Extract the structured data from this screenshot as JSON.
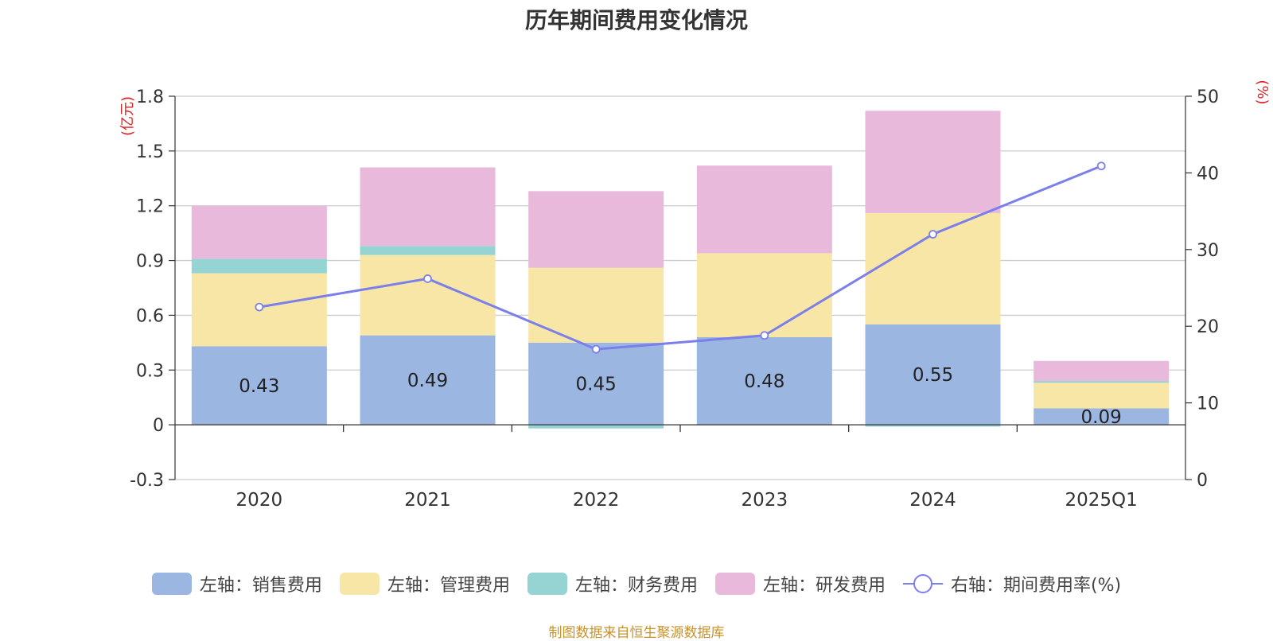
{
  "chart_data": {
    "type": "bar",
    "title": "历年期间费用变化情况",
    "categories": [
      "2020",
      "2021",
      "2022",
      "2023",
      "2024",
      "2025Q1"
    ],
    "left_axis": {
      "unit": "(亿元)",
      "ylim": [
        -0.3,
        1.8
      ],
      "ticks": [
        "-0.3",
        "0",
        "0.3",
        "0.6",
        "0.9",
        "1.2",
        "1.5",
        "1.8"
      ]
    },
    "right_axis": {
      "unit": "(%)",
      "ylim": [
        0,
        50
      ],
      "ticks": [
        "0",
        "10",
        "20",
        "30",
        "40",
        "50"
      ]
    },
    "series": [
      {
        "name": "左轴：销售费用",
        "type": "bar",
        "color": "#9ab6e1",
        "values": [
          0.43,
          0.49,
          0.45,
          0.48,
          0.55,
          0.09
        ],
        "labels": [
          "0.43",
          "0.49",
          "0.45",
          "0.48",
          "0.55",
          "0.09"
        ]
      },
      {
        "name": "左轴：管理费用",
        "type": "bar",
        "color": "#f8e6a6",
        "values": [
          0.4,
          0.44,
          0.41,
          0.46,
          0.61,
          0.14
        ]
      },
      {
        "name": "左轴：财务费用",
        "type": "bar",
        "color": "#96d4d4",
        "values": [
          0.08,
          0.05,
          -0.02,
          0.0,
          -0.01,
          0.01
        ]
      },
      {
        "name": "左轴：研发费用",
        "type": "bar",
        "color": "#e8b9da",
        "values": [
          0.29,
          0.43,
          0.42,
          0.48,
          0.56,
          0.11
        ]
      },
      {
        "name": "右轴：期间费用率(%)",
        "type": "line",
        "axis": "right",
        "color": "#7b7fea",
        "values": [
          22.5,
          26.2,
          17.0,
          18.8,
          32.0,
          40.9
        ]
      }
    ],
    "grid": true,
    "legend_position": "bottom"
  },
  "source_note": "制图数据来自恒生聚源数据库"
}
